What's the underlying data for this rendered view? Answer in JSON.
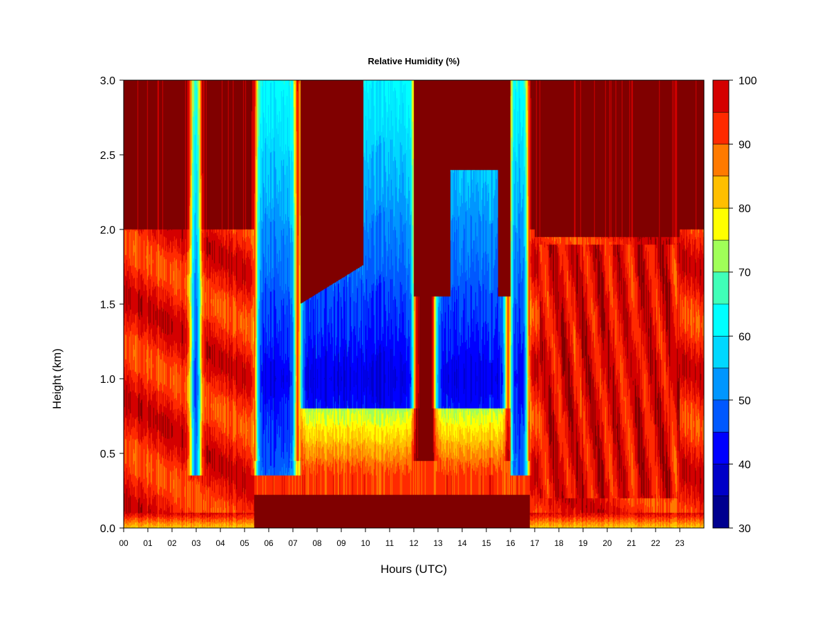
{
  "chart_data": {
    "type": "heatmap",
    "title": "Relative Humidity (%)",
    "xlabel": "Hours (UTC)",
    "ylabel": "Height (km)",
    "xlim": [
      0,
      24
    ],
    "ylim": [
      0,
      3
    ],
    "x_ticks": [
      "00",
      "01",
      "02",
      "03",
      "04",
      "05",
      "06",
      "07",
      "08",
      "09",
      "10",
      "11",
      "12",
      "13",
      "14",
      "15",
      "16",
      "17",
      "18",
      "19",
      "20",
      "21",
      "22",
      "23"
    ],
    "y_ticks": [
      "0.0",
      "0.5",
      "1.0",
      "1.5",
      "2.0",
      "2.5",
      "3.0"
    ],
    "y_tick_values": [
      0,
      0.5,
      1.0,
      1.5,
      2.0,
      2.5,
      3.0
    ],
    "colorbar": {
      "min": 30,
      "max": 100,
      "levels": [
        30,
        35,
        40,
        45,
        50,
        55,
        60,
        65,
        70,
        75,
        80,
        85,
        90,
        95,
        100
      ],
      "colors": [
        "#00008f",
        "#0000c8",
        "#0000ff",
        "#0058ff",
        "#0096ff",
        "#00d8ff",
        "#00ffff",
        "#40ffb8",
        "#a0ff58",
        "#ffff00",
        "#ffbf00",
        "#ff7a00",
        "#ff2a00",
        "#d40000",
        "#800000"
      ],
      "tick_labels": [
        "30",
        "40",
        "50",
        "60",
        "70",
        "80",
        "90",
        "100"
      ],
      "tick_values": [
        30,
        40,
        50,
        60,
        70,
        80,
        90,
        100
      ]
    },
    "dry_episodes_hours": [
      [
        2.8,
        3.15
      ],
      [
        5.5,
        7.1
      ],
      [
        7.3,
        12.0
      ],
      [
        12.9,
        15.8
      ],
      [
        16.0,
        16.7
      ]
    ],
    "grid": false
  }
}
